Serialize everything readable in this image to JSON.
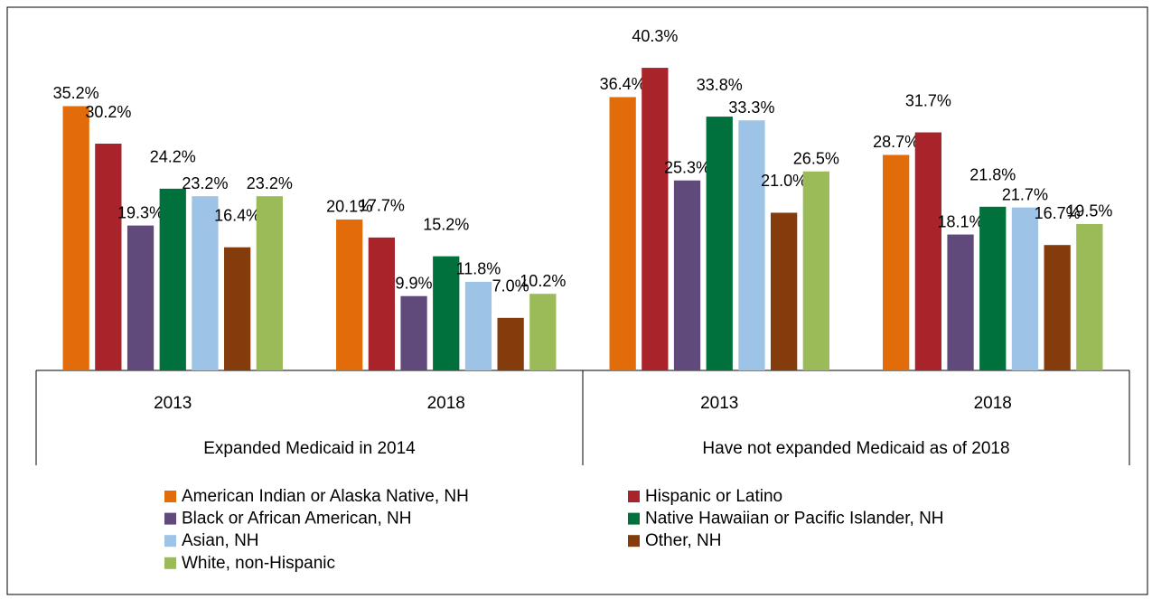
{
  "chart_data": {
    "type": "bar",
    "groups": [
      {
        "name": "Expanded Medicaid in 2014",
        "categories": [
          "2013",
          "2018"
        ]
      },
      {
        "name": "Have not expanded Medicaid as of 2018",
        "categories": [
          "2013",
          "2018"
        ]
      }
    ],
    "ylim": [
      0,
      45
    ],
    "series": [
      {
        "name": "American Indian or Alaska Native, NH",
        "color": "#e36c0a",
        "values": [
          35.2,
          20.1,
          36.4,
          28.7
        ],
        "value_labels": [
          "35.2%",
          "20.1%",
          "36.4%",
          "28.7%"
        ]
      },
      {
        "name": "Hispanic or Latino",
        "color": "#a9232b",
        "values": [
          30.2,
          17.7,
          40.3,
          31.7
        ],
        "value_labels": [
          "30.2%",
          "17.7%",
          "40.3%",
          "31.7%"
        ]
      },
      {
        "name": "Black or African American, NH",
        "color": "#604a7b",
        "values": [
          19.3,
          9.9,
          25.3,
          18.1
        ],
        "value_labels": [
          "19.3%",
          "9.9%",
          "25.3%",
          "18.1%"
        ]
      },
      {
        "name": "Native Hawaiian or Pacific Islander, NH",
        "color": "#00703c",
        "values": [
          24.2,
          15.2,
          33.8,
          21.8
        ],
        "value_labels": [
          "24.2%",
          "15.2%",
          "33.8%",
          "21.8%"
        ]
      },
      {
        "name": "Asian, NH",
        "color": "#9dc3e6",
        "values": [
          23.2,
          11.8,
          33.3,
          21.7
        ],
        "value_labels": [
          "23.2%",
          "11.8%",
          "33.3%",
          "21.7%"
        ]
      },
      {
        "name": "Other, NH",
        "color": "#843c0c",
        "values": [
          16.4,
          7.0,
          21.0,
          16.7
        ],
        "value_labels": [
          "16.4%",
          "7.0%",
          "21.0%",
          "16.7%"
        ]
      },
      {
        "name": "White, non-Hispanic",
        "color": "#9bbb59",
        "values": [
          23.2,
          10.2,
          26.5,
          19.5
        ],
        "value_labels": [
          "23.2%",
          "10.2%",
          "26.5%",
          "19.5%"
        ]
      }
    ]
  }
}
